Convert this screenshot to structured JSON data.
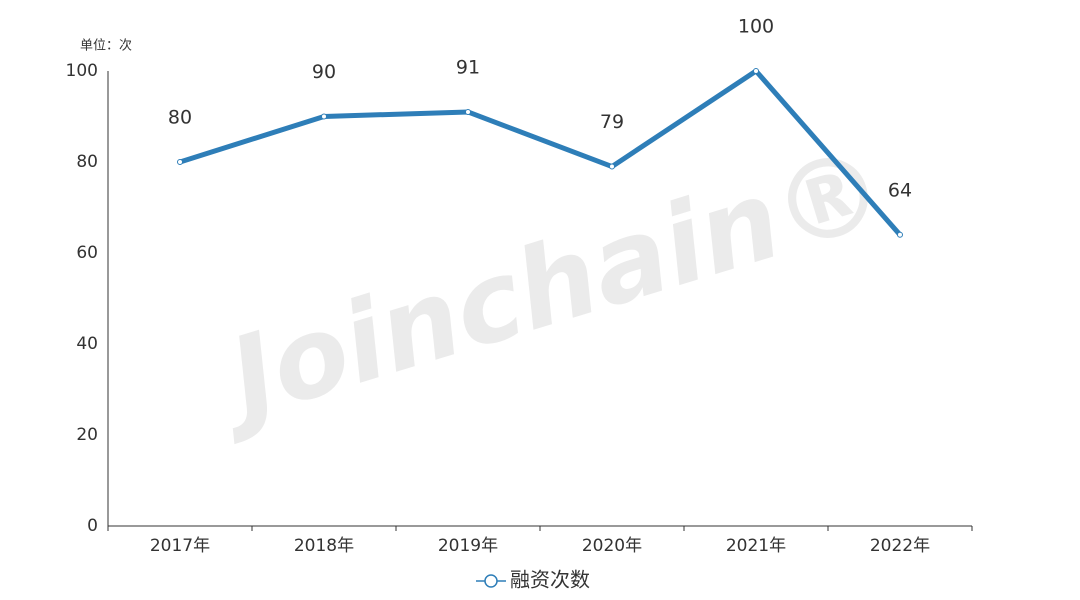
{
  "chart_data": {
    "type": "line",
    "y_label": "单位：次",
    "watermark": "Joinchain®",
    "categories": [
      "2017年",
      "2018年",
      "2019年",
      "2020年",
      "2021年",
      "2022年"
    ],
    "series": [
      {
        "name": "融资次数",
        "color": "#2e7eb8",
        "values": [
          80,
          90,
          91,
          79,
          100,
          64
        ]
      }
    ],
    "ylim": [
      0,
      100
    ],
    "yticks": [
      0,
      20,
      40,
      60,
      80,
      100
    ],
    "grid": false,
    "data_labels": true,
    "legend": "bottom"
  }
}
